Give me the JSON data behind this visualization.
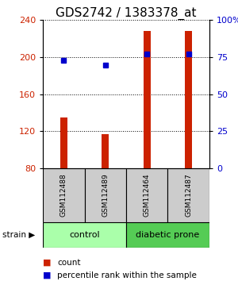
{
  "title": "GDS2742 / 1383378_at",
  "samples": [
    "GSM112488",
    "GSM112489",
    "GSM112464",
    "GSM112487"
  ],
  "bar_values": [
    135,
    117,
    228,
    228
  ],
  "dot_values": [
    196,
    191,
    203,
    203
  ],
  "bar_color": "#cc2200",
  "dot_color": "#0000cc",
  "ylim_left": [
    80,
    240
  ],
  "yticks_left": [
    80,
    120,
    160,
    200,
    240
  ],
  "yticks_right": [
    0,
    25,
    50,
    75,
    100
  ],
  "yticklabels_right": [
    "0",
    "25",
    "50",
    "75",
    "100%"
  ],
  "baseline": 80,
  "groups": [
    {
      "label": "control",
      "indices": [
        0,
        1
      ],
      "color": "#aaffaa"
    },
    {
      "label": "diabetic prone",
      "indices": [
        2,
        3
      ],
      "color": "#55cc55"
    }
  ],
  "group_label": "strain",
  "legend_count_label": "count",
  "legend_pct_label": "percentile rank within the sample",
  "bar_width": 0.18,
  "grid_color": "#000000",
  "sample_box_color": "#cccccc",
  "title_fontsize": 11,
  "sample_fontsize": 6.5,
  "group_fontsize": 8,
  "legend_fontsize": 7.5
}
